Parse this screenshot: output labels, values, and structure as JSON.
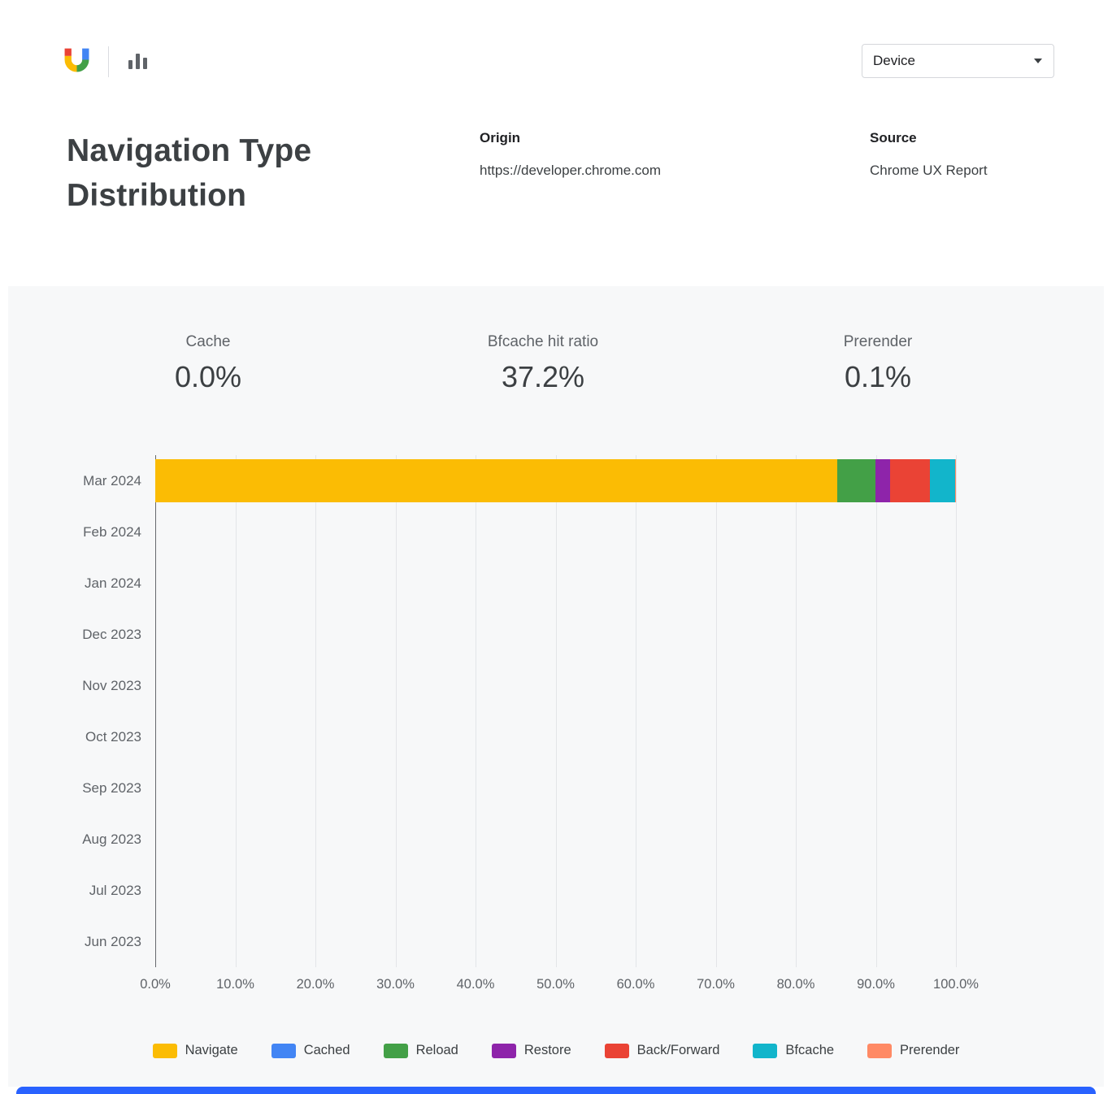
{
  "header": {
    "device_filter": {
      "label": "Device"
    }
  },
  "title": "Navigation Type Distribution",
  "meta": {
    "origin_label": "Origin",
    "origin_value": "https://developer.chrome.com",
    "source_label": "Source",
    "source_value": "Chrome UX Report"
  },
  "stats": [
    {
      "label": "Cache",
      "value": "0.0%"
    },
    {
      "label": "Bfcache hit ratio",
      "value": "37.2%"
    },
    {
      "label": "Prerender",
      "value": "0.1%"
    }
  ],
  "chart_data": {
    "type": "bar",
    "orientation": "horizontal",
    "stacked": true,
    "title": "Navigation Type Distribution",
    "categories": [
      "Mar 2024",
      "Feb 2024",
      "Jan 2024",
      "Dec 2023",
      "Nov 2023",
      "Oct 2023",
      "Sep 2023",
      "Aug 2023",
      "Jul 2023",
      "Jun 2023"
    ],
    "x_ticks": [
      "0.0%",
      "10.0%",
      "20.0%",
      "30.0%",
      "40.0%",
      "50.0%",
      "60.0%",
      "70.0%",
      "80.0%",
      "90.0%",
      "100.0%"
    ],
    "xlim": [
      0,
      100
    ],
    "grid": true,
    "legend_position": "bottom",
    "series": [
      {
        "name": "Navigate",
        "color": "#FBBC04",
        "values": [
          85.2,
          0,
          0,
          0,
          0,
          0,
          0,
          0,
          0,
          0
        ]
      },
      {
        "name": "Cached",
        "color": "#4285F4",
        "values": [
          0,
          0,
          0,
          0,
          0,
          0,
          0,
          0,
          0,
          0
        ]
      },
      {
        "name": "Reload",
        "color": "#43A047",
        "values": [
          4.8,
          0,
          0,
          0,
          0,
          0,
          0,
          0,
          0,
          0
        ]
      },
      {
        "name": "Restore",
        "color": "#8E24AA",
        "values": [
          1.8,
          0,
          0,
          0,
          0,
          0,
          0,
          0,
          0,
          0
        ]
      },
      {
        "name": "Back/Forward",
        "color": "#EA4335",
        "values": [
          5.0,
          0,
          0,
          0,
          0,
          0,
          0,
          0,
          0,
          0
        ]
      },
      {
        "name": "Bfcache",
        "color": "#12B5CB",
        "values": [
          3.1,
          0,
          0,
          0,
          0,
          0,
          0,
          0,
          0,
          0
        ]
      },
      {
        "name": "Prerender",
        "color": "#FF8A65",
        "values": [
          0.1,
          0,
          0,
          0,
          0,
          0,
          0,
          0,
          0,
          0
        ]
      }
    ]
  },
  "ui_colors": {
    "next_panel_strip": "#2962FF",
    "panel_background": "#F7F8F9"
  }
}
